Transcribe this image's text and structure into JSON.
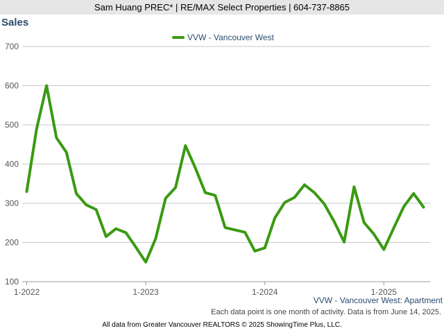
{
  "header": {
    "text": "Sam Huang PREC* | RE/MAX Select Properties | 604-737-8865"
  },
  "caption": "VVW - Vancouver West: Apartment",
  "note": "Each data point is one month of activity. Data is from June 14, 2025.",
  "footer": "All data from Greater Vancouver REALTORS © 2025 ShowingTime Plus, LLC.",
  "colors": {
    "series": "#3a9a12",
    "grid": "#c8c8c8",
    "title": "#2a4a6e",
    "header_bg": "#e6e6e6"
  },
  "chart_data": {
    "type": "line",
    "title": "Sales",
    "xlabel": "",
    "ylabel": "",
    "ylim": [
      100,
      700
    ],
    "yticks": [
      100,
      200,
      300,
      400,
      500,
      600,
      700
    ],
    "x_ticks": [
      "1-2022",
      "1-2023",
      "1-2024",
      "1-2025"
    ],
    "grid": true,
    "legend": "top-center",
    "series": [
      {
        "name": "VVW - Vancouver West",
        "color": "#3a9a12",
        "x": [
          "2022-01",
          "2022-02",
          "2022-03",
          "2022-04",
          "2022-05",
          "2022-06",
          "2022-07",
          "2022-08",
          "2022-09",
          "2022-10",
          "2022-11",
          "2022-12",
          "2023-01",
          "2023-02",
          "2023-03",
          "2023-04",
          "2023-05",
          "2023-06",
          "2023-07",
          "2023-08",
          "2023-09",
          "2023-10",
          "2023-11",
          "2023-12",
          "2024-01",
          "2024-02",
          "2024-03",
          "2024-04",
          "2024-05",
          "2024-06",
          "2024-07",
          "2024-08",
          "2024-09",
          "2024-10",
          "2024-11",
          "2024-12",
          "2025-01",
          "2025-02",
          "2025-03",
          "2025-04",
          "2025-05"
        ],
        "values": [
          330,
          490,
          600,
          467,
          430,
          325,
          296,
          284,
          215,
          235,
          225,
          188,
          150,
          210,
          313,
          340,
          447,
          390,
          327,
          320,
          238,
          232,
          226,
          178,
          186,
          262,
          302,
          315,
          347,
          327,
          298,
          253,
          201,
          342,
          251,
          221,
          182,
          237,
          291,
          325,
          290
        ]
      }
    ]
  }
}
